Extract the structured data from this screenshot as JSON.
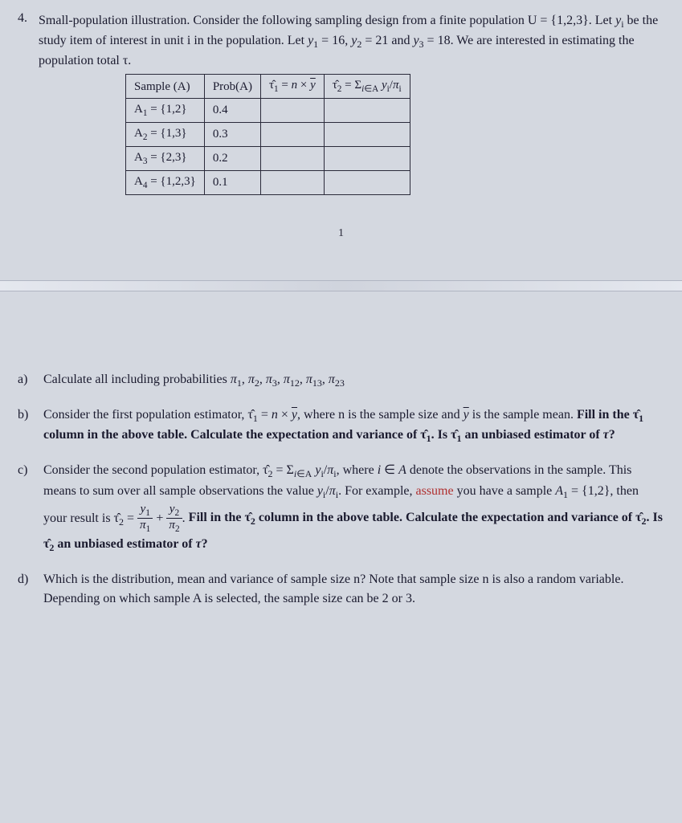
{
  "problem": {
    "number": "4.",
    "title": "Small-population illustration. Consider the following sampling design from a finite population U = {1,2,3}. Let yᵢ be the study item of interest in unit i in the population. Let y₁ = 16, y₂ = 21 and y₃ = 18. We are interested in estimating the population total τ."
  },
  "table": {
    "headers": {
      "sample": "Sample (A)",
      "prob": "Prob(A)",
      "tau1_html": "τ̂₁ = n × ȳ",
      "tau2_html": "τ̂₂ = Σ_{i∈A} yᵢ/πᵢ"
    },
    "rows": [
      {
        "sample_label": "A₁ = {1,2}",
        "prob": "0.4"
      },
      {
        "sample_label": "A₂ = {1,3}",
        "prob": "0.3"
      },
      {
        "sample_label": "A₃ = {2,3}",
        "prob": "0.2"
      },
      {
        "sample_label": "A₄ = {1,2,3}",
        "prob": "0.1"
      }
    ]
  },
  "page_number": "1",
  "parts": {
    "a": {
      "label": "a)",
      "text": "Calculate all including probabilities π₁, π₂, π₃, π₁₂, π₁₃, π₂₃"
    },
    "b": {
      "label": "b)",
      "text_plain": "Consider the first population estimator, τ̂₁ = n × ȳ, where n is the sample size and ȳ is the sample mean. ",
      "bold_text": "Fill in the τ̂₁ column in the above table. Calculate the expectation and variance of τ̂₁. Is τ̂₁ an unbiased estimator of τ?"
    },
    "c": {
      "label": "c)",
      "text1": "Consider the second population estimator, τ̂₂ = Σ_{i∈A} yᵢ/πᵢ, where i ∈ A denote the observations in the sample. This means to sum over all sample observations the value yᵢ/πᵢ. For example, ",
      "assume": "assume",
      "text2": " you have a sample A₁ = {1,2}, then your result is τ̂₂ = y₁/π₁ + y₂/π₂. ",
      "bold_text": "Fill in the τ̂₂ column in the above table. Calculate the expectation and variance of τ̂₂. Is τ̂₂ an unbiased estimator of τ?"
    },
    "d": {
      "label": "d)",
      "text": "Which is the distribution, mean and variance of sample size n? Note that sample size n is also a random variable. Depending on which sample A is selected, the sample size can be 2 or 3."
    }
  },
  "styling": {
    "background_color": "#d4d8e0",
    "text_color": "#1a1a2e",
    "assume_color": "#b03030",
    "base_fontsize": 16,
    "table_border_color": "#2a2a3a"
  }
}
